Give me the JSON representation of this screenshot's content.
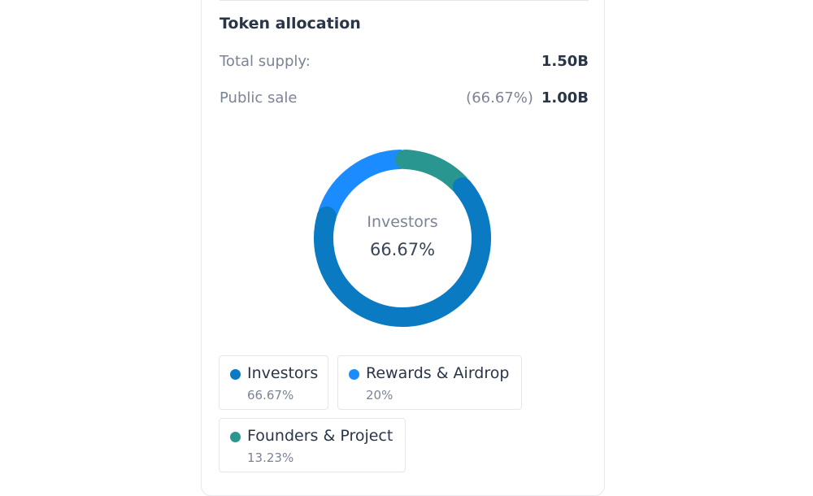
{
  "section": {
    "title": "Token allocation",
    "total_supply_label": "Total supply:",
    "total_supply_value": "1.50B",
    "public_sale_label": "Public sale",
    "public_sale_pct": "(66.67%)",
    "public_sale_value": "1.00B"
  },
  "chart_data": {
    "type": "pie",
    "categories": [
      "Investors",
      "Rewards & Airdrop",
      "Founders & Project"
    ],
    "values": [
      66.67,
      20,
      13.23
    ],
    "colors": [
      "#0a7bc2",
      "#1a8cff",
      "#2a9690"
    ],
    "center_label": "Investors",
    "center_value": "66.67%"
  },
  "legend": [
    {
      "name": "Investors",
      "pct": "66.67%",
      "color": "#0a7bc2"
    },
    {
      "name": "Rewards & Airdrop",
      "pct": "20%",
      "color": "#1a8cff"
    },
    {
      "name": "Founders & Project",
      "pct": "13.23%",
      "color": "#2a9690"
    }
  ]
}
